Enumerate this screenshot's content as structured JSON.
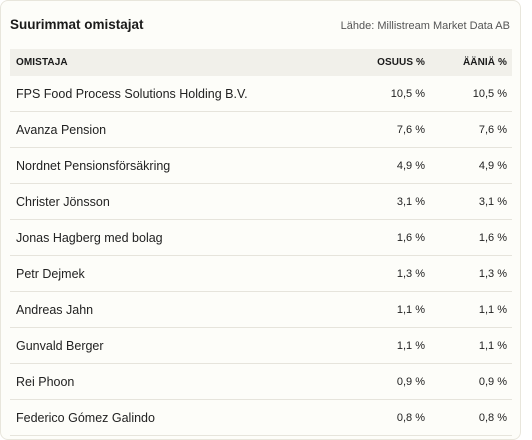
{
  "card": {
    "title": "Suurimmat omistajat",
    "source": "Lähde: Millistream Market Data AB"
  },
  "table": {
    "headers": {
      "owner": "OMISTAJA",
      "share": "OSUUS %",
      "votes": "ÄÄNIÄ %"
    },
    "rows": [
      {
        "owner": "FPS Food Process Solutions Holding B.V.",
        "share": "10,5 %",
        "votes": "10,5 %"
      },
      {
        "owner": "Avanza Pension",
        "share": "7,6 %",
        "votes": "7,6 %"
      },
      {
        "owner": "Nordnet Pensionsförsäkring",
        "share": "4,9 %",
        "votes": "4,9 %"
      },
      {
        "owner": "Christer Jönsson",
        "share": "3,1 %",
        "votes": "3,1 %"
      },
      {
        "owner": "Jonas Hagberg med bolag",
        "share": "1,6 %",
        "votes": "1,6 %"
      },
      {
        "owner": "Petr Dejmek",
        "share": "1,3 %",
        "votes": "1,3 %"
      },
      {
        "owner": "Andreas Jahn",
        "share": "1,1 %",
        "votes": "1,1 %"
      },
      {
        "owner": "Gunvald Berger",
        "share": "1,1 %",
        "votes": "1,1 %"
      },
      {
        "owner": "Rei Phoon",
        "share": "0,9 %",
        "votes": "0,9 %"
      },
      {
        "owner": "Federico Gómez Galindo",
        "share": "0,8 %",
        "votes": "0,8 %"
      }
    ]
  }
}
